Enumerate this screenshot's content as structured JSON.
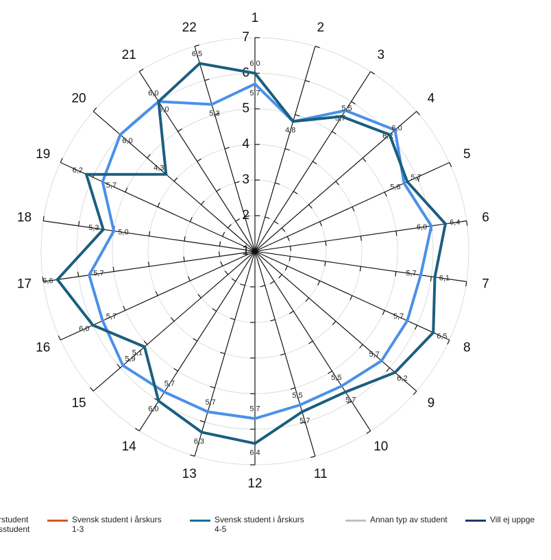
{
  "chart_data": {
    "type": "radar",
    "categories": [
      "1",
      "2",
      "3",
      "4",
      "5",
      "6",
      "7",
      "8",
      "9",
      "10",
      "11",
      "12",
      "13",
      "14",
      "15",
      "16",
      "17",
      "18",
      "19",
      "20",
      "21",
      "22"
    ],
    "rlim": [
      1,
      7
    ],
    "rticks": [
      "1",
      "2",
      "3",
      "4",
      "5",
      "6",
      "7"
    ],
    "grid": true,
    "series": [
      {
        "color": "#4a90e8",
        "values": [
          5.7,
          4.8,
          5.7,
          6.2,
          5.6,
          6.0,
          5.7,
          5.7,
          5.7,
          5.5,
          5.5,
          5.7,
          5.7,
          5.7,
          5.9,
          5.7,
          5.7,
          5.0,
          5.7,
          6.0,
          6.0,
          5.3
        ],
        "labels": [
          "5,7",
          "4,8",
          "5,7",
          "6,2",
          "5,6",
          "6,0",
          "5,7",
          "5,7",
          "5,7",
          "5,5",
          "5,5",
          "5,7",
          "5,7",
          "5,7",
          "5,9",
          "5,7",
          "5,7",
          "5,0",
          "5,7",
          "6,0",
          "6,0",
          "5,3"
        ]
      },
      {
        "color": "#1a5e80",
        "values": [
          6.0,
          4.8,
          5.5,
          6.0,
          5.7,
          6.4,
          6.1,
          6.5,
          6.2,
          5.7,
          5.7,
          6.4,
          6.3,
          6.0,
          5.1,
          6.0,
          6.6,
          5.3,
          6.2,
          4.3,
          6.0,
          6.5
        ],
        "labels": [
          "6,0",
          "",
          "5,5",
          "6,0",
          "5,7",
          "6,4",
          "6,1",
          "6,5",
          "6,2",
          "5,7",
          "5,7",
          "6,4",
          "6,3",
          "6,0",
          "5,1",
          "6,0",
          "6,6",
          "5,3",
          "6,2",
          "4,3",
          "6,0",
          "6,5"
        ]
      }
    ],
    "legend": {
      "position": "bottom",
      "items": [
        {
          "label": "rstudent\nsstudent",
          "color": ""
        },
        {
          "label": "Svensk student i årskurs\n1-3",
          "color": "#d2581e"
        },
        {
          "label": "Svensk student i årskurs\n4-5",
          "color": "#1a6e96"
        },
        {
          "label": "Annan typ av student",
          "color": "#c0c0c0"
        },
        {
          "label": "Vill ej uppge",
          "color": "#1b3a6b"
        }
      ]
    }
  }
}
